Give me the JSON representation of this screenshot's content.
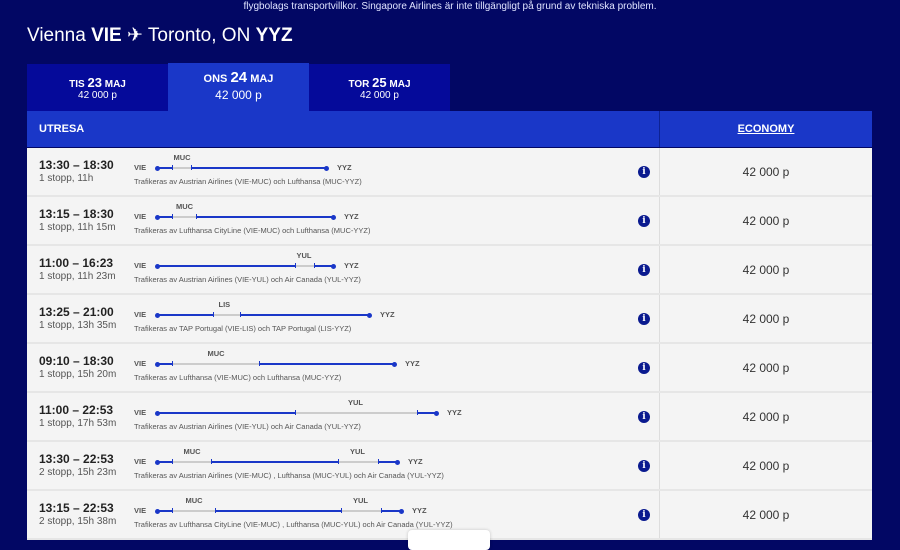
{
  "banner": "flygbolags transportvillkor. Singapore Airlines är inte tillgängligt på grund av tekniska problem.",
  "route": {
    "from_city": "Vienna",
    "from_code": "VIE",
    "to_city": "Toronto, ON",
    "to_code": "YYZ",
    "icon": "airplane-icon"
  },
  "dates": [
    {
      "day": "TIS",
      "num": "23",
      "month": "MAJ",
      "price": "42 000 p",
      "active": false
    },
    {
      "day": "ONS",
      "num": "24",
      "month": "MAJ",
      "price": "42 000 p",
      "active": true
    },
    {
      "day": "TOR",
      "num": "25",
      "month": "MAJ",
      "price": "42 000 p",
      "active": false
    }
  ],
  "header": {
    "outbound": "UTRESA",
    "cabin": "ECONOMY"
  },
  "colors": {
    "background": "#020764",
    "accent": "#1a37c8",
    "tab": "#050a9a"
  },
  "flights": [
    {
      "time": "13:30 – 18:30",
      "duration": "1 stopp, 11h",
      "origin": "VIE",
      "dest": "YYZ",
      "stops": [
        "MUC"
      ],
      "operators": "Trafikeras av Austrian Airlines (VIE-MUC) och Lufthansa (MUC-YYZ)",
      "price": "42 000 p"
    },
    {
      "time": "13:15 – 18:30",
      "duration": "1 stopp, 11h 15m",
      "origin": "VIE",
      "dest": "YYZ",
      "stops": [
        "MUC"
      ],
      "operators": "Trafikeras av Lufthansa CityLine (VIE-MUC) och Lufthansa (MUC-YYZ)",
      "price": "42 000 p"
    },
    {
      "time": "11:00 – 16:23",
      "duration": "1 stopp, 11h 23m",
      "origin": "VIE",
      "dest": "YYZ",
      "stops": [
        "YUL"
      ],
      "operators": "Trafikeras av Austrian Airlines (VIE-YUL) och Air Canada (YUL-YYZ)",
      "price": "42 000 p"
    },
    {
      "time": "13:25 – 21:00",
      "duration": "1 stopp, 13h 35m",
      "origin": "VIE",
      "dest": "YYZ",
      "stops": [
        "LIS"
      ],
      "operators": "Trafikeras av TAP Portugal (VIE-LIS) och TAP Portugal (LIS-YYZ)",
      "price": "42 000 p"
    },
    {
      "time": "09:10 – 18:30",
      "duration": "1 stopp, 15h 20m",
      "origin": "VIE",
      "dest": "YYZ",
      "stops": [
        "MUC"
      ],
      "operators": "Trafikeras av Lufthansa (VIE-MUC) och Lufthansa (MUC-YYZ)",
      "price": "42 000 p"
    },
    {
      "time": "11:00 – 22:53",
      "duration": "1 stopp, 17h 53m",
      "origin": "VIE",
      "dest": "YYZ",
      "stops": [
        "YUL"
      ],
      "operators": "Trafikeras av Austrian Airlines (VIE-YUL) och Air Canada (YUL-YYZ)",
      "price": "42 000 p"
    },
    {
      "time": "13:30 – 22:53",
      "duration": "2 stopp, 15h 23m",
      "origin": "VIE",
      "dest": "YYZ",
      "stops": [
        "MUC",
        "YUL"
      ],
      "operators": "Trafikeras av Austrian Airlines (VIE-MUC) , Lufthansa (MUC-YUL) och Air Canada (YUL-YYZ)",
      "price": "42 000 p"
    },
    {
      "time": "13:15 – 22:53",
      "duration": "2 stopp, 15h 38m",
      "origin": "VIE",
      "dest": "YYZ",
      "stops": [
        "MUC",
        "YUL"
      ],
      "operators": "Trafikeras av Lufthansa CityLine (VIE-MUC) , Lufthansa (MUC-YUL) och Air Canada (YUL-YYZ)",
      "price": "42 000 p"
    }
  ]
}
